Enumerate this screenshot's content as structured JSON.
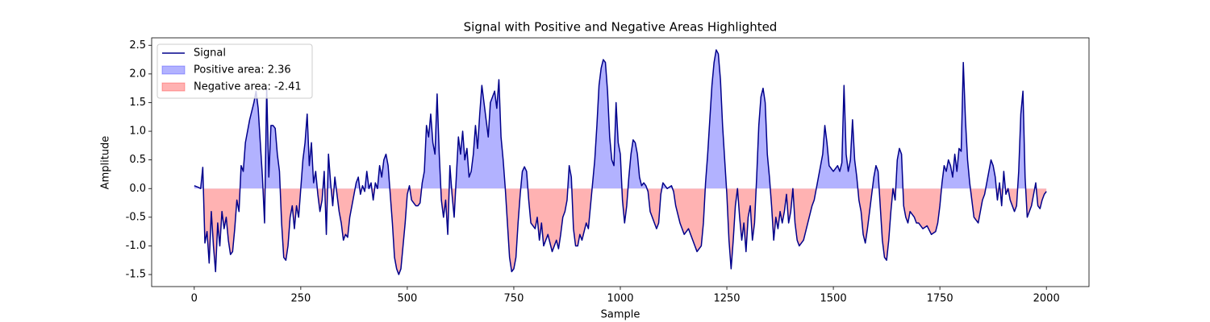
{
  "chart_data": {
    "type": "line",
    "title": "Signal with Positive and Negative Areas Highlighted",
    "xlabel": "Sample",
    "ylabel": "Amplitude",
    "xlim": [
      -100,
      2100
    ],
    "ylim": [
      -1.71,
      2.63
    ],
    "xticks": [
      0,
      250,
      500,
      750,
      1000,
      1250,
      1500,
      1750,
      2000
    ],
    "yticks": [
      -1.5,
      {
        "value": -1,
        "label": "-1.0"
      },
      -0.5,
      {
        "value": 0,
        "label": "0.0"
      },
      0.5,
      {
        "value": 1,
        "label": "1.0"
      },
      1.5,
      {
        "value": 2,
        "label": "2.0"
      },
      2.5
    ],
    "legend": "upper left",
    "x": [
      0,
      10,
      15,
      20,
      25,
      30,
      35,
      40,
      45,
      50,
      55,
      60,
      65,
      70,
      75,
      80,
      85,
      90,
      95,
      100,
      105,
      110,
      115,
      120,
      130,
      140,
      145,
      150,
      155,
      160,
      165,
      170,
      175,
      180,
      185,
      190,
      195,
      200,
      205,
      210,
      215,
      220,
      225,
      230,
      235,
      240,
      245,
      250,
      255,
      260,
      265,
      270,
      275,
      280,
      285,
      290,
      295,
      300,
      305,
      310,
      315,
      320,
      325,
      330,
      335,
      340,
      345,
      350,
      355,
      360,
      365,
      370,
      375,
      380,
      385,
      390,
      395,
      400,
      405,
      410,
      415,
      420,
      425,
      430,
      435,
      440,
      445,
      450,
      455,
      460,
      465,
      470,
      475,
      480,
      485,
      490,
      495,
      500,
      505,
      510,
      515,
      520,
      525,
      530,
      535,
      540,
      545,
      550,
      555,
      560,
      565,
      570,
      575,
      580,
      585,
      590,
      595,
      600,
      605,
      610,
      615,
      620,
      625,
      630,
      635,
      640,
      645,
      650,
      655,
      660,
      665,
      670,
      675,
      680,
      685,
      690,
      695,
      700,
      705,
      710,
      715,
      720,
      725,
      730,
      735,
      740,
      745,
      750,
      755,
      760,
      765,
      770,
      775,
      780,
      785,
      790,
      800,
      805,
      810,
      815,
      820,
      830,
      840,
      850,
      855,
      860,
      865,
      870,
      875,
      880,
      885,
      890,
      895,
      900,
      905,
      910,
      920,
      925,
      930,
      935,
      940,
      945,
      950,
      955,
      960,
      965,
      970,
      975,
      980,
      985,
      990,
      995,
      1000,
      1005,
      1010,
      1015,
      1020,
      1025,
      1030,
      1035,
      1040,
      1045,
      1050,
      1055,
      1060,
      1065,
      1070,
      1075,
      1080,
      1085,
      1090,
      1095,
      1100,
      1105,
      1110,
      1120,
      1125,
      1130,
      1140,
      1150,
      1160,
      1170,
      1180,
      1190,
      1195,
      1200,
      1205,
      1210,
      1215,
      1220,
      1225,
      1230,
      1235,
      1240,
      1245,
      1250,
      1255,
      1260,
      1265,
      1270,
      1275,
      1280,
      1285,
      1290,
      1295,
      1300,
      1305,
      1310,
      1315,
      1320,
      1325,
      1330,
      1335,
      1340,
      1345,
      1350,
      1355,
      1360,
      1365,
      1370,
      1375,
      1380,
      1385,
      1390,
      1395,
      1400,
      1405,
      1410,
      1415,
      1420,
      1430,
      1440,
      1450,
      1455,
      1460,
      1465,
      1470,
      1475,
      1480,
      1485,
      1490,
      1500,
      1505,
      1510,
      1515,
      1520,
      1525,
      1530,
      1535,
      1540,
      1545,
      1550,
      1555,
      1560,
      1565,
      1570,
      1575,
      1580,
      1585,
      1590,
      1595,
      1600,
      1605,
      1610,
      1615,
      1620,
      1625,
      1630,
      1635,
      1640,
      1645,
      1650,
      1655,
      1660,
      1665,
      1670,
      1675,
      1680,
      1690,
      1695,
      1700,
      1710,
      1720,
      1730,
      1740,
      1745,
      1750,
      1755,
      1760,
      1765,
      1770,
      1775,
      1780,
      1785,
      1790,
      1795,
      1800,
      1805,
      1810,
      1815,
      1820,
      1825,
      1830,
      1835,
      1840,
      1845,
      1850,
      1855,
      1860,
      1865,
      1870,
      1875,
      1880,
      1885,
      1890,
      1895,
      1900,
      1905,
      1910,
      1915,
      1920,
      1925,
      1930,
      1935,
      1940,
      1945,
      1950,
      1955,
      1960,
      1965,
      1970,
      1975,
      1980,
      1985,
      1990,
      1995,
      2000
    ],
    "series": [
      {
        "name": "Signal",
        "color": "#00008b",
        "values": [
          0.05,
          0.02,
          0.0,
          0.37,
          -0.95,
          -0.75,
          -1.3,
          -0.4,
          -1.0,
          -1.45,
          -0.6,
          -1.0,
          -0.4,
          -0.7,
          -0.5,
          -0.9,
          -1.15,
          -1.1,
          -0.7,
          -0.2,
          -0.4,
          0.4,
          0.3,
          0.8,
          1.2,
          1.5,
          1.7,
          1.4,
          0.8,
          0.2,
          -0.6,
          1.75,
          0.2,
          1.1,
          1.1,
          1.05,
          0.6,
          0.3,
          -0.6,
          -1.2,
          -1.25,
          -1.0,
          -0.5,
          -0.3,
          -0.7,
          -0.3,
          -0.5,
          0.0,
          0.5,
          0.8,
          1.3,
          0.4,
          0.8,
          0.1,
          0.3,
          -0.1,
          -0.4,
          -0.2,
          0.3,
          -0.8,
          0.6,
          0.1,
          -0.3,
          0.2,
          -0.1,
          -0.4,
          -0.6,
          -0.9,
          -0.8,
          -0.85,
          -0.5,
          -0.3,
          -0.1,
          0.1,
          0.2,
          -0.1,
          0.05,
          -0.05,
          0.3,
          0.0,
          0.1,
          -0.2,
          0.1,
          0.0,
          0.4,
          0.2,
          0.5,
          0.6,
          0.4,
          -0.1,
          -0.6,
          -1.2,
          -1.4,
          -1.5,
          -1.4,
          -1.0,
          -0.6,
          -0.1,
          0.05,
          -0.2,
          -0.25,
          -0.3,
          -0.3,
          -0.25,
          0.1,
          0.3,
          1.1,
          0.9,
          1.3,
          0.8,
          0.6,
          1.65,
          0.6,
          -0.2,
          -0.5,
          -0.2,
          -0.8,
          0.4,
          -0.1,
          -0.5,
          0.2,
          0.9,
          0.6,
          1.0,
          0.5,
          0.7,
          0.2,
          0.3,
          0.6,
          1.1,
          0.7,
          1.3,
          1.8,
          1.5,
          1.2,
          0.9,
          1.5,
          1.6,
          1.7,
          1.4,
          1.9,
          0.9,
          0.5,
          0.0,
          -0.6,
          -1.2,
          -1.45,
          -1.4,
          -1.2,
          -0.6,
          -0.1,
          0.3,
          0.38,
          0.3,
          -0.2,
          -0.6,
          -0.7,
          -0.5,
          -0.9,
          -0.6,
          -1.0,
          -0.8,
          -1.1,
          -0.9,
          -1.05,
          -0.8,
          -0.5,
          -0.4,
          -0.2,
          0.4,
          0.2,
          -0.7,
          -1.0,
          -1.0,
          -0.8,
          -0.9,
          -0.6,
          -0.7,
          -0.3,
          0.1,
          0.5,
          1.1,
          1.8,
          2.1,
          2.25,
          2.2,
          1.7,
          0.9,
          0.5,
          0.4,
          1.5,
          0.8,
          0.6,
          -0.2,
          -0.6,
          -0.3,
          0.2,
          0.6,
          0.85,
          0.8,
          0.6,
          0.2,
          0.05,
          0.1,
          0.05,
          -0.05,
          -0.4,
          -0.5,
          -0.6,
          -0.7,
          -0.6,
          -0.1,
          0.1,
          0.05,
          0.0,
          0.05,
          -0.05,
          -0.3,
          -0.6,
          -0.8,
          -0.7,
          -0.9,
          -1.1,
          -1.0,
          -0.6,
          0.1,
          0.6,
          1.2,
          1.8,
          2.2,
          2.42,
          2.35,
          1.9,
          1.1,
          0.5,
          -0.1,
          -0.9,
          -1.4,
          -0.9,
          -0.3,
          0.0,
          -0.5,
          -0.9,
          -0.6,
          -1.1,
          -0.5,
          -0.3,
          -0.9,
          -0.6,
          0.2,
          1.1,
          1.6,
          1.75,
          1.5,
          0.6,
          0.2,
          -0.3,
          -0.9,
          -0.5,
          -0.7,
          -0.4,
          -0.6,
          -0.4,
          -0.1,
          -0.6,
          -0.4,
          0.0,
          -0.6,
          -0.9,
          -1.0,
          -0.9,
          -0.6,
          -0.3,
          -0.2,
          0.0,
          0.2,
          0.4,
          0.6,
          1.1,
          0.8,
          0.4,
          0.3,
          0.35,
          0.4,
          0.3,
          0.45,
          1.8,
          0.6,
          0.3,
          0.5,
          1.2,
          0.5,
          0.2,
          -0.2,
          -0.4,
          -0.8,
          -0.95,
          -0.7,
          -0.4,
          -0.1,
          0.2,
          0.4,
          0.3,
          -0.3,
          -0.9,
          -1.2,
          -1.25,
          -0.9,
          -0.4,
          0.0,
          -0.2,
          0.5,
          0.7,
          0.6,
          -0.3,
          -0.5,
          -0.6,
          -0.4,
          -0.5,
          -0.6,
          -0.6,
          -0.7,
          -0.65,
          -0.8,
          -0.75,
          -0.6,
          -0.3,
          0.1,
          0.4,
          0.3,
          0.5,
          0.4,
          0.2,
          0.6,
          0.3,
          0.7,
          0.65,
          2.2,
          1.2,
          0.5,
          0.1,
          -0.2,
          -0.5,
          -0.55,
          -0.6,
          -0.4,
          -0.2,
          -0.1,
          0.1,
          0.3,
          0.5,
          0.4,
          0.2,
          -0.2,
          0.1,
          -0.3,
          0.3,
          -0.1,
          0.0,
          -0.2,
          -0.3,
          -0.4,
          -0.3,
          0.3,
          1.3,
          1.7,
          0.2,
          -0.5,
          -0.4,
          -0.3,
          -0.1,
          0.1,
          -0.3,
          -0.35,
          -0.2,
          -0.1,
          -0.05
        ]
      }
    ],
    "areas": [
      {
        "name": "Positive area: 2.36",
        "color": "#0000ff"
      },
      {
        "name": "Negative area: -2.41",
        "color": "#ff0000"
      }
    ]
  }
}
